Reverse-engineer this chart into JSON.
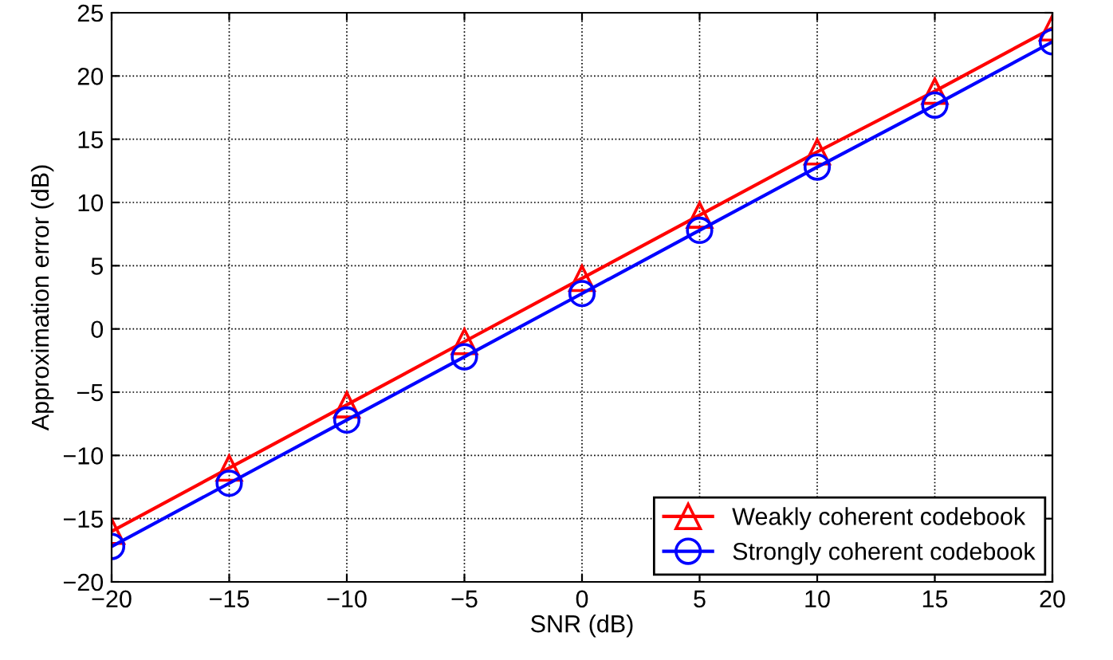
{
  "chart_data": {
    "type": "line",
    "xlabel": "SNR (dB)",
    "ylabel": "Approximation error (dB)",
    "x": [
      -20,
      -15,
      -10,
      -5,
      0,
      5,
      10,
      15,
      20
    ],
    "series": [
      {
        "name": "Weakly coherent codebook",
        "color": "#ff0000",
        "marker": "triangle",
        "values": [
          -16.0,
          -11.0,
          -6.0,
          -1.0,
          4.0,
          9.0,
          14.0,
          18.8,
          23.8
        ]
      },
      {
        "name": "Strongly coherent codebook",
        "color": "#0000ff",
        "marker": "circle",
        "values": [
          -17.2,
          -12.2,
          -7.2,
          -2.2,
          2.8,
          7.8,
          12.8,
          17.7,
          22.7
        ]
      }
    ],
    "xlim": [
      -20,
      20
    ],
    "xticks": [
      -20,
      -15,
      -10,
      -5,
      0,
      5,
      10,
      15,
      20
    ],
    "ylim": [
      -20,
      25
    ],
    "yticks": [
      -20,
      -15,
      -10,
      -5,
      0,
      5,
      10,
      15,
      20,
      25
    ],
    "grid": true,
    "legend": "bottom right",
    "line_style": "solid"
  }
}
